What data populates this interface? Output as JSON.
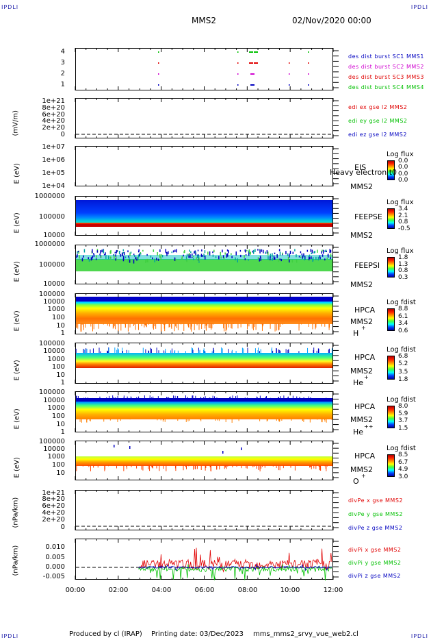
{
  "corners": {
    "tl": "IPDLI",
    "tr": "IPDLI",
    "bl": "IPDLI",
    "br": "IPDLI"
  },
  "header": {
    "spacecraft": "MMS2",
    "datetime": "02/Nov/2020 00:00"
  },
  "xaxis": {
    "ticks": [
      "00:00",
      "02:00",
      "04:00",
      "06:00",
      "08:00",
      "10:00",
      "12:00"
    ]
  },
  "colors": {
    "sc1": "#0000c0",
    "sc2": "#d000d0",
    "sc3": "#e00000",
    "sc4": "#00c000",
    "x": "#e00000",
    "y": "#00c000",
    "z": "#0000c0"
  },
  "panels": {
    "burst": {
      "yticks": [
        "4",
        "3",
        "2",
        "1"
      ],
      "legend": [
        "des dist burst SC1 MMS1",
        "des dist burst SC2 MMS2",
        "des dist burst SC3 MMS3",
        "des dist burst SC4 MMS4"
      ]
    },
    "edi": {
      "ylabel": "(mV/m)",
      "yticks": [
        "1e+21",
        "8e+20",
        "6e+20",
        "4e+20",
        "2e+20",
        "0"
      ],
      "legend": [
        "edi ex gse l2 MMS2",
        "edi ey gse l2 MMS2",
        "edi ez gse l2 MMS2"
      ]
    },
    "eis": {
      "ylabel": "E (eV)",
      "yticks": [
        "1e+07",
        "1e+06",
        "1e+05",
        "1e+04"
      ],
      "inst": "EIS",
      "inst2": "MMS2",
      "overlay": "Heavy electron t0",
      "cbtitle": "Log flux",
      "cbvals": [
        "0.0",
        "0.0",
        "0.0",
        "0.0"
      ]
    },
    "feepse": {
      "ylabel": "E (eV)",
      "yticks": [
        "1000000",
        "100000",
        "10000"
      ],
      "inst": "FEEPSE",
      "inst2": "MMS2",
      "cbtitle": "Log flux",
      "cbvals": [
        "3.4",
        "2.1",
        "0.8",
        "-0.5"
      ]
    },
    "feepsi": {
      "ylabel": "E (eV)",
      "yticks": [
        "1000000",
        "100000",
        "10000"
      ],
      "inst": "FEEPSI",
      "inst2": "MMS2",
      "cbtitle": "Log flux",
      "cbvals": [
        "1.8",
        "1.3",
        "0.8",
        "0.3"
      ]
    },
    "hpca_h": {
      "ylabel": "E (eV)",
      "yticks": [
        "100000",
        "10000",
        "1000",
        "100",
        "10",
        "1"
      ],
      "inst": "HPCA",
      "inst2": "MMS2",
      "species": "H",
      "sup": "+",
      "cbtitle": "Log fdist",
      "cbvals": [
        "8.8",
        "6.1",
        "3.4",
        "0.6"
      ]
    },
    "hpca_he": {
      "ylabel": "E (eV)",
      "yticks": [
        "100000",
        "10000",
        "1000",
        "100",
        "10",
        "1"
      ],
      "inst": "HPCA",
      "inst2": "MMS2",
      "species": "He",
      "sup": "+",
      "cbtitle": "Log fdist",
      "cbvals": [
        "6.8",
        "5.2",
        "3.5",
        "1.8"
      ]
    },
    "hpca_hepp": {
      "ylabel": "E (eV)",
      "yticks": [
        "100000",
        "10000",
        "1000",
        "100",
        "10",
        "1"
      ],
      "inst": "HPCA",
      "inst2": "MMS2",
      "species": "He",
      "sup": "++",
      "cbtitle": "Log fdist",
      "cbvals": [
        "8.0",
        "5.9",
        "3.7",
        "1.5"
      ]
    },
    "hpca_o": {
      "ylabel": "E (eV)",
      "yticks": [
        "100000",
        "10000",
        "1000",
        "100",
        "10"
      ],
      "inst": "HPCA",
      "inst2": "MMS2",
      "species": "O",
      "sup": "+",
      "cbtitle": "Log fdist",
      "cbvals": [
        "8.5",
        "6.7",
        "4.9",
        "3.0"
      ]
    },
    "divpe": {
      "ylabel": "(nPa/km)",
      "yticks": [
        "1e+21",
        "8e+20",
        "6e+20",
        "4e+20",
        "2e+20",
        "0"
      ],
      "legend": [
        "divPe x gse MMS2",
        "divPe y gse MMS2",
        "divPe z gse MMS2"
      ]
    },
    "divpi": {
      "ylabel": "(nPa/km)",
      "yticks": [
        "0.010",
        "0.005",
        "0.000",
        "-0.005"
      ],
      "legend": [
        "divPi x gse MMS2",
        "divPi y gse MMS2",
        "divPi z gse MMS2"
      ]
    }
  },
  "footer": {
    "produced": "Produced by cl (IRAP)",
    "printing": "Printing date: 03/Dec/2023",
    "file": "mms_mms2_srvy_vue_web2.cl"
  },
  "chart_data": [
    {
      "type": "scatter",
      "title": "",
      "ylabel": "",
      "categories": [
        "1",
        "2",
        "3",
        "4"
      ],
      "xlim": [
        "00:00",
        "12:00"
      ],
      "series": [
        {
          "name": "des dist burst SC1 MMS1",
          "values": []
        },
        {
          "name": "des dist burst SC2 MMS2",
          "values": []
        },
        {
          "name": "des dist burst SC3 MMS3",
          "values": []
        },
        {
          "name": "des dist burst SC4 MMS4",
          "values": []
        }
      ]
    },
    {
      "type": "line",
      "ylabel": "(mV/m)",
      "ylim": [
        0,
        1e+21
      ],
      "series": [
        {
          "name": "edi ex gse l2 MMS2"
        },
        {
          "name": "edi ey gse l2 MMS2"
        },
        {
          "name": "edi ez gse l2 MMS2"
        }
      ]
    },
    {
      "type": "heatmap",
      "ylabel": "E (eV)",
      "ylim": [
        10000.0,
        10000000.0
      ],
      "legend": "Log flux",
      "colorbar": [
        0.0,
        0.0,
        0.0,
        0.0
      ]
    },
    {
      "type": "heatmap",
      "ylabel": "E (eV)",
      "ylim": [
        10000.0,
        1000000.0
      ],
      "legend": "Log flux",
      "colorbar": [
        3.4,
        2.1,
        0.8,
        -0.5
      ]
    },
    {
      "type": "heatmap",
      "ylabel": "E (eV)",
      "ylim": [
        10000.0,
        1000000.0
      ],
      "legend": "Log flux",
      "colorbar": [
        1.8,
        1.3,
        0.8,
        0.3
      ]
    },
    {
      "type": "heatmap",
      "ylabel": "E (eV)",
      "ylim": [
        1,
        100000.0
      ],
      "legend": "Log fdist",
      "colorbar": [
        8.8,
        6.1,
        3.4,
        0.6
      ]
    },
    {
      "type": "heatmap",
      "ylabel": "E (eV)",
      "ylim": [
        1,
        100000.0
      ],
      "legend": "Log fdist",
      "colorbar": [
        6.8,
        5.2,
        3.5,
        1.8
      ]
    },
    {
      "type": "heatmap",
      "ylabel": "E (eV)",
      "ylim": [
        1,
        100000.0
      ],
      "legend": "Log fdist",
      "colorbar": [
        8.0,
        5.9,
        3.7,
        1.5
      ]
    },
    {
      "type": "heatmap",
      "ylabel": "E (eV)",
      "ylim": [
        10,
        100000.0
      ],
      "legend": "Log fdist",
      "colorbar": [
        8.5,
        6.7,
        4.9,
        3.0
      ]
    },
    {
      "type": "line",
      "ylabel": "(nPa/km)",
      "ylim": [
        0,
        1e+21
      ],
      "series": [
        {
          "name": "divPe x gse MMS2"
        },
        {
          "name": "divPe y gse MMS2"
        },
        {
          "name": "divPe z gse MMS2"
        }
      ]
    },
    {
      "type": "line",
      "ylabel": "(nPa/km)",
      "ylim": [
        -0.007,
        0.012
      ],
      "series": [
        {
          "name": "divPi x gse MMS2"
        },
        {
          "name": "divPi y gse MMS2"
        },
        {
          "name": "divPi z gse MMS2"
        }
      ]
    }
  ]
}
